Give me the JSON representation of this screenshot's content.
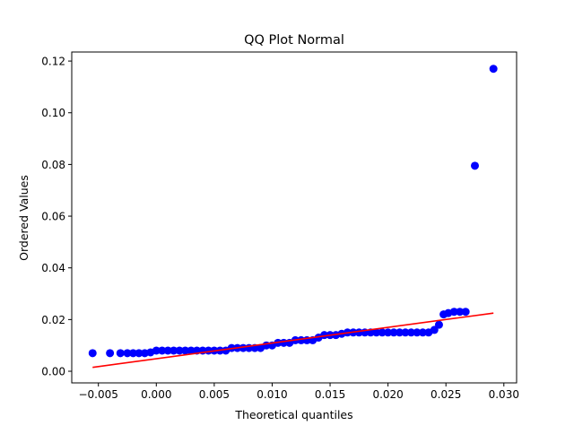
{
  "chart_data": {
    "type": "scatter",
    "title": "QQ Plot Normal",
    "xlabel": "Theoretical quantiles",
    "ylabel": "Ordered Values",
    "xlim": [
      -0.0073,
      0.0311
    ],
    "ylim": [
      -0.0045,
      0.1235
    ],
    "xticks": [
      -0.005,
      0.0,
      0.005,
      0.01,
      0.015,
      0.02,
      0.025,
      0.03
    ],
    "xtick_labels": [
      "−0.005",
      "0.000",
      "0.005",
      "0.010",
      "0.015",
      "0.020",
      "0.025",
      "0.030"
    ],
    "yticks": [
      0.0,
      0.02,
      0.04,
      0.06,
      0.08,
      0.1,
      0.12
    ],
    "ytick_labels": [
      "0.00",
      "0.02",
      "0.04",
      "0.06",
      "0.08",
      "0.10",
      "0.12"
    ],
    "grid": false,
    "marker_color": "#0000ff",
    "line_color": "#ff0000",
    "series": [
      {
        "kind": "points",
        "x": [
          -0.0055,
          -0.004,
          -0.0031,
          -0.0025,
          -0.002,
          -0.0015,
          -0.001,
          -0.0005,
          0.0,
          0.0005,
          0.001,
          0.0015,
          0.002,
          0.0025,
          0.003,
          0.0035,
          0.004,
          0.0045,
          0.005,
          0.0055,
          0.006,
          0.0065,
          0.007,
          0.0075,
          0.008,
          0.0085,
          0.009,
          0.0095,
          0.01,
          0.0105,
          0.011,
          0.0115,
          0.012,
          0.0125,
          0.013,
          0.0135,
          0.014,
          0.0145,
          0.015,
          0.0155,
          0.016,
          0.0165,
          0.017,
          0.0175,
          0.018,
          0.0185,
          0.019,
          0.0195,
          0.02,
          0.0205,
          0.021,
          0.0215,
          0.022,
          0.0225,
          0.023,
          0.0235,
          0.024,
          0.0244,
          0.0248,
          0.0252,
          0.0257,
          0.0262,
          0.0267,
          0.0275,
          0.0291
        ],
        "y": [
          0.007,
          0.007,
          0.007,
          0.007,
          0.007,
          0.007,
          0.007,
          0.0073,
          0.008,
          0.008,
          0.008,
          0.008,
          0.008,
          0.008,
          0.008,
          0.008,
          0.008,
          0.008,
          0.008,
          0.008,
          0.008,
          0.009,
          0.009,
          0.009,
          0.009,
          0.009,
          0.009,
          0.01,
          0.01,
          0.011,
          0.011,
          0.011,
          0.012,
          0.012,
          0.012,
          0.012,
          0.013,
          0.014,
          0.014,
          0.014,
          0.0145,
          0.015,
          0.015,
          0.015,
          0.015,
          0.015,
          0.015,
          0.015,
          0.015,
          0.015,
          0.015,
          0.015,
          0.015,
          0.015,
          0.015,
          0.015,
          0.016,
          0.018,
          0.022,
          0.0225,
          0.023,
          0.023,
          0.023,
          0.0795,
          0.117
        ]
      },
      {
        "kind": "fit-line",
        "x": [
          -0.0055,
          0.0291
        ],
        "y": [
          0.0015,
          0.0225
        ]
      }
    ]
  }
}
